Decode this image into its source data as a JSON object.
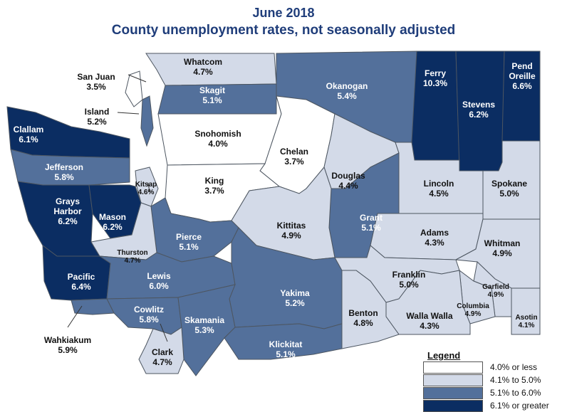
{
  "title": "June 2018",
  "subtitle": "County unemployment rates, not seasonally adjusted",
  "colors": {
    "c1": "#ffffff",
    "c2": "#d3dae8",
    "c3": "#53709b",
    "c4": "#0b2d62"
  },
  "legend": {
    "title": "Legend",
    "items": [
      {
        "label": "4.0% or less",
        "color": "#ffffff"
      },
      {
        "label": "4.1% to 5.0%",
        "color": "#d3dae8"
      },
      {
        "label": "5.1% to 6.0%",
        "color": "#53709b"
      },
      {
        "label": "6.1% or greater",
        "color": "#0b2d62"
      }
    ]
  },
  "counties": [
    {
      "name": "Whatcom",
      "rate": "4.7%",
      "class": 2
    },
    {
      "name": "San Juan",
      "rate": "3.5%",
      "class": 1
    },
    {
      "name": "Skagit",
      "rate": "5.1%",
      "class": 3
    },
    {
      "name": "Island",
      "rate": "5.2%",
      "class": 3
    },
    {
      "name": "Okanogan",
      "rate": "5.4%",
      "class": 3
    },
    {
      "name": "Ferry",
      "rate": "10.3%",
      "class": 4
    },
    {
      "name": "Stevens",
      "rate": "6.2%",
      "class": 4
    },
    {
      "name": "Pend Oreille",
      "name1": "Pend",
      "name2": "Oreille",
      "rate": "6.6%",
      "class": 4
    },
    {
      "name": "Clallam",
      "rate": "6.1%",
      "class": 4
    },
    {
      "name": "Snohomish",
      "rate": "4.0%",
      "class": 1
    },
    {
      "name": "Chelan",
      "rate": "3.7%",
      "class": 1
    },
    {
      "name": "Jefferson",
      "rate": "5.8%",
      "class": 3
    },
    {
      "name": "Douglas",
      "rate": "4.4%",
      "class": 2
    },
    {
      "name": "Lincoln",
      "rate": "4.5%",
      "class": 2
    },
    {
      "name": "Spokane",
      "rate": "5.0%",
      "class": 2
    },
    {
      "name": "King",
      "rate": "3.7%",
      "class": 1
    },
    {
      "name": "Kitsap",
      "rate": "4.6%",
      "class": 2
    },
    {
      "name": "Grays Harbor",
      "name1": "Grays",
      "name2": "Harbor",
      "rate": "6.2%",
      "class": 4
    },
    {
      "name": "Mason",
      "rate": "6.2%",
      "class": 4
    },
    {
      "name": "Grant",
      "rate": "5.1%",
      "class": 3
    },
    {
      "name": "Kittitas",
      "rate": "4.9%",
      "class": 2
    },
    {
      "name": "Adams",
      "rate": "4.3%",
      "class": 2
    },
    {
      "name": "Whitman",
      "rate": "4.9%",
      "class": 2
    },
    {
      "name": "Pierce",
      "rate": "5.1%",
      "class": 3
    },
    {
      "name": "Thurston",
      "rate": "4.7%",
      "class": 2
    },
    {
      "name": "Pacific",
      "rate": "6.4%",
      "class": 4
    },
    {
      "name": "Lewis",
      "rate": "6.0%",
      "class": 3
    },
    {
      "name": "Yakima",
      "rate": "5.2%",
      "class": 3
    },
    {
      "name": "Franklin",
      "rate": "5.0%",
      "class": 2
    },
    {
      "name": "Garfield",
      "rate": "4.9%",
      "class": 2
    },
    {
      "name": "Columbia",
      "rate": "4.9%",
      "class": 2
    },
    {
      "name": "Asotin",
      "rate": "4.1%",
      "class": 2
    },
    {
      "name": "Walla Walla",
      "rate": "4.3%",
      "class": 2
    },
    {
      "name": "Benton",
      "rate": "4.8%",
      "class": 2
    },
    {
      "name": "Cowlitz",
      "rate": "5.8%",
      "class": 3
    },
    {
      "name": "Skamania",
      "rate": "5.3%",
      "class": 3
    },
    {
      "name": "Wahkiakum",
      "rate": "5.9%",
      "class": 3
    },
    {
      "name": "Klickitat",
      "rate": "5.1%",
      "class": 3
    },
    {
      "name": "Clark",
      "rate": "4.7%",
      "class": 2
    }
  ]
}
